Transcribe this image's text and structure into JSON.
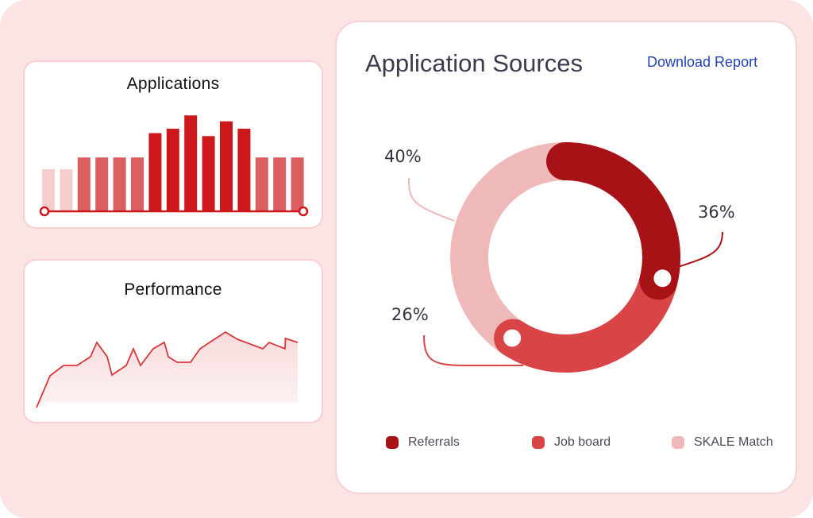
{
  "colors": {
    "background": "#fde4e4",
    "dark": "#a61216",
    "medium": "#d94547",
    "light": "#f0b9b9",
    "bar_light": "#f6cdce",
    "bar_medium": "#dc5e61",
    "bar_dark": "#cc181b",
    "line": "#d9363a",
    "link": "#2341b0"
  },
  "chart_data": [
    {
      "type": "bar",
      "title": "Applications",
      "values": [
        57,
        57,
        73,
        73,
        73,
        73,
        106,
        112,
        130,
        102,
        122,
        112,
        73,
        73,
        73
      ],
      "levels": [
        "light",
        "light",
        "medium",
        "medium",
        "medium",
        "medium",
        "dark",
        "dark",
        "dark",
        "dark",
        "dark",
        "dark",
        "medium",
        "medium",
        "medium"
      ],
      "ylim": [
        0,
        140
      ]
    },
    {
      "type": "area",
      "title": "Performance",
      "x": [
        0,
        17,
        34,
        51,
        68,
        76,
        89,
        95,
        113,
        122,
        131,
        147,
        161,
        166,
        177,
        194,
        206,
        221,
        238,
        253,
        285,
        293,
        313,
        313.5,
        329
      ],
      "y": [
        7,
        47,
        60,
        60,
        71,
        89,
        71,
        48,
        60,
        81,
        60,
        81,
        89,
        71,
        64,
        64,
        81,
        91,
        102,
        93,
        81,
        89,
        81,
        94,
        89
      ],
      "ylim": [
        0,
        110
      ]
    },
    {
      "type": "pie",
      "title": "Application Sources",
      "labels": [
        "Referrals",
        "Job board",
        "SKALE Match"
      ],
      "values": [
        36,
        26,
        40
      ],
      "value_labels": [
        "36%",
        "26%",
        "40%"
      ],
      "legend": "bottom"
    }
  ],
  "cards": {
    "applications_title": "Applications",
    "performance_title": "Performance"
  },
  "sources": {
    "title": "Application Sources",
    "download": "Download Report",
    "legend": [
      "Referrals",
      "Job board",
      "SKALE Match"
    ]
  }
}
